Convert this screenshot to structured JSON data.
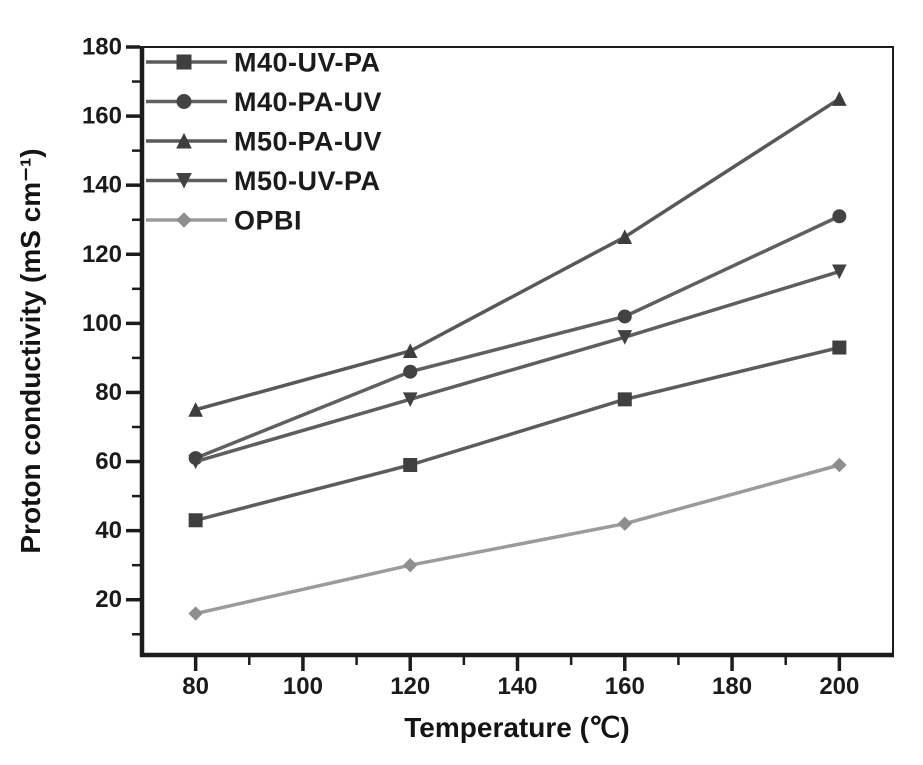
{
  "figure": {
    "background": "#ffffff",
    "axis_color": "#1c1c1c",
    "text_color": "#1b1b1b"
  },
  "chart_data": {
    "type": "line",
    "title": "",
    "xlabel": "Temperature (℃)",
    "ylabel": "Proton conductivity (mS cm⁻¹)",
    "x": [
      80,
      120,
      160,
      200
    ],
    "series": [
      {
        "name": "M40-UV-PA",
        "marker": "square",
        "line_color": "#5c5c5c",
        "marker_color": "#3f3f3f",
        "values": [
          43,
          59,
          78,
          93
        ]
      },
      {
        "name": "M40-PA-UV",
        "marker": "circle",
        "line_color": "#606060",
        "marker_color": "#434343",
        "values": [
          61,
          86,
          102,
          131
        ]
      },
      {
        "name": "M50-PA-UV",
        "marker": "triangle-up",
        "line_color": "#585858",
        "marker_color": "#3d3d3d",
        "values": [
          75,
          92,
          125,
          165
        ]
      },
      {
        "name": "M50-UV-PA",
        "marker": "triangle-down",
        "line_color": "#5e5e5e",
        "marker_color": "#424242",
        "values": [
          60,
          78,
          96,
          115
        ]
      },
      {
        "name": "OPBI",
        "marker": "diamond",
        "line_color": "#9b9b9b",
        "marker_color": "#8e8e8e",
        "values": [
          16,
          30,
          42,
          59
        ]
      }
    ],
    "xlim": [
      70,
      210
    ],
    "ylim": [
      4,
      180
    ],
    "x_major_ticks": [
      80,
      100,
      120,
      140,
      160,
      180,
      200
    ],
    "y_major_ticks": [
      20,
      40,
      60,
      80,
      100,
      120,
      140,
      160,
      180
    ],
    "minor_tick_step": 10,
    "grid": false,
    "legend_position": "top-left"
  }
}
